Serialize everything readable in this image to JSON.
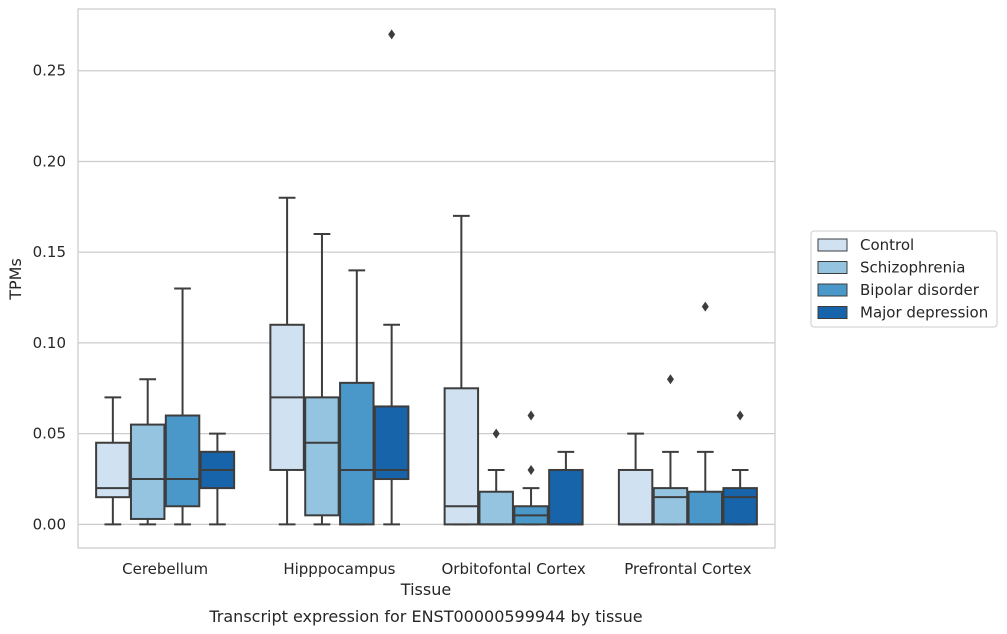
{
  "chart_data": {
    "type": "box",
    "title": "",
    "caption": "Transcript expression for ENST00000599944 by tissue",
    "xlabel": "Tissue",
    "ylabel": "TPMs",
    "ylim": [
      -0.013,
      0.284
    ],
    "yticks": [
      "0.00",
      "0.05",
      "0.10",
      "0.15",
      "0.20",
      "0.25"
    ],
    "ytick_values": [
      0.0,
      0.05,
      0.1,
      0.15,
      0.2,
      0.25
    ],
    "grid": "horizontal",
    "legend_position": "right-outside",
    "categories": [
      "Cerebellum",
      "Hipppocampus",
      "Orbitofontal Cortex",
      "Prefrontal Cortex"
    ],
    "series": [
      {
        "name": "Control",
        "color": "#d0e1f2",
        "boxes": [
          {
            "whisker_low": 0.0,
            "q1": 0.015,
            "median": 0.02,
            "q3": 0.045,
            "whisker_high": 0.07,
            "outliers": []
          },
          {
            "whisker_low": 0.0,
            "q1": 0.03,
            "median": 0.07,
            "q3": 0.11,
            "whisker_high": 0.18,
            "outliers": []
          },
          {
            "whisker_low": 0.0,
            "q1": 0.0,
            "median": 0.01,
            "q3": 0.075,
            "whisker_high": 0.17,
            "outliers": []
          },
          {
            "whisker_low": 0.0,
            "q1": 0.0,
            "median": 0.0,
            "q3": 0.03,
            "whisker_high": 0.05,
            "outliers": []
          }
        ]
      },
      {
        "name": "Schizophrenia",
        "color": "#94c4df",
        "boxes": [
          {
            "whisker_low": 0.0,
            "q1": 0.003,
            "median": 0.025,
            "q3": 0.055,
            "whisker_high": 0.08,
            "outliers": []
          },
          {
            "whisker_low": 0.0,
            "q1": 0.005,
            "median": 0.045,
            "q3": 0.07,
            "whisker_high": 0.16,
            "outliers": []
          },
          {
            "whisker_low": 0.0,
            "q1": 0.0,
            "median": 0.0,
            "q3": 0.018,
            "whisker_high": 0.03,
            "outliers": [
              0.05
            ]
          },
          {
            "whisker_low": 0.0,
            "q1": 0.0,
            "median": 0.015,
            "q3": 0.02,
            "whisker_high": 0.04,
            "outliers": [
              0.08
            ]
          }
        ]
      },
      {
        "name": "Bipolar disorder",
        "color": "#4a98c9",
        "boxes": [
          {
            "whisker_low": 0.0,
            "q1": 0.01,
            "median": 0.025,
            "q3": 0.06,
            "whisker_high": 0.13,
            "outliers": []
          },
          {
            "whisker_low": 0.0,
            "q1": 0.0,
            "median": 0.03,
            "q3": 0.078,
            "whisker_high": 0.14,
            "outliers": []
          },
          {
            "whisker_low": 0.0,
            "q1": 0.0,
            "median": 0.005,
            "q3": 0.01,
            "whisker_high": 0.02,
            "outliers": [
              0.03,
              0.06
            ]
          },
          {
            "whisker_low": 0.0,
            "q1": 0.0,
            "median": 0.0,
            "q3": 0.018,
            "whisker_high": 0.04,
            "outliers": [
              0.12
            ]
          }
        ]
      },
      {
        "name": "Major depression",
        "color": "#1764ab",
        "boxes": [
          {
            "whisker_low": 0.0,
            "q1": 0.02,
            "median": 0.03,
            "q3": 0.04,
            "whisker_high": 0.05,
            "outliers": []
          },
          {
            "whisker_low": 0.0,
            "q1": 0.025,
            "median": 0.03,
            "q3": 0.065,
            "whisker_high": 0.11,
            "outliers": [
              0.27
            ]
          },
          {
            "whisker_low": 0.0,
            "q1": 0.0,
            "median": 0.0,
            "q3": 0.03,
            "whisker_high": 0.04,
            "outliers": []
          },
          {
            "whisker_low": 0.0,
            "q1": 0.0,
            "median": 0.015,
            "q3": 0.02,
            "whisker_high": 0.03,
            "outliers": [
              0.06
            ]
          }
        ]
      }
    ]
  }
}
